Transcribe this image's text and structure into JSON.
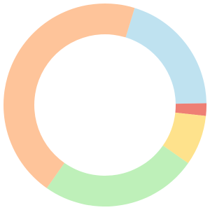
{
  "chart_data": {
    "type": "donut",
    "values": [
      20,
      2,
      8,
      25,
      45
    ],
    "colors": [
      "#bfe2f0",
      "#ee7f74",
      "#fee28c",
      "#bef0b9",
      "#fec49a"
    ]
  }
}
